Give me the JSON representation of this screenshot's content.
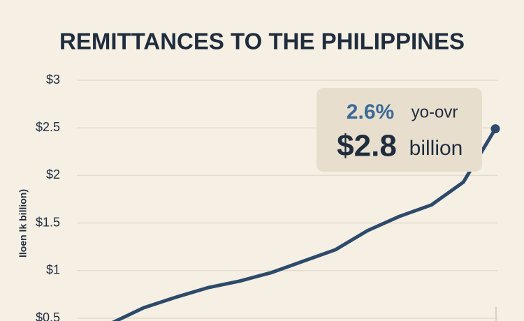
{
  "chart_data": {
    "type": "line",
    "title": "REMITTANCES TO THE PHILIPPINES",
    "y_label": "lloen lk billion)",
    "categories": [
      null,
      null,
      null,
      null,
      null,
      null,
      null,
      null,
      null,
      null,
      null,
      null,
      null
    ],
    "series": [
      {
        "name": null,
        "color": "#2d4a6b",
        "values": [
          0.45,
          0.61,
          0.72,
          0.82,
          0.89,
          0.98,
          1.1,
          1.22,
          1.42,
          1.57,
          1.69,
          1.93,
          2.49
        ]
      }
    ],
    "ylim": [
      0.5,
      3
    ],
    "yticks": [
      {
        "value": 0.5,
        "label": "$0.5"
      },
      {
        "value": 1,
        "label": "$1"
      },
      {
        "value": 1.5,
        "label": "$1.5"
      },
      {
        "value": 2,
        "label": "$2"
      },
      {
        "value": 2.5,
        "label": "$2.5"
      },
      {
        "value": 3,
        "label": "$3"
      }
    ],
    "grid": true,
    "annotation": {
      "change": "2.6%",
      "change_label": "yo-ovr",
      "amount": "$2.8",
      "unit": "billion"
    }
  }
}
